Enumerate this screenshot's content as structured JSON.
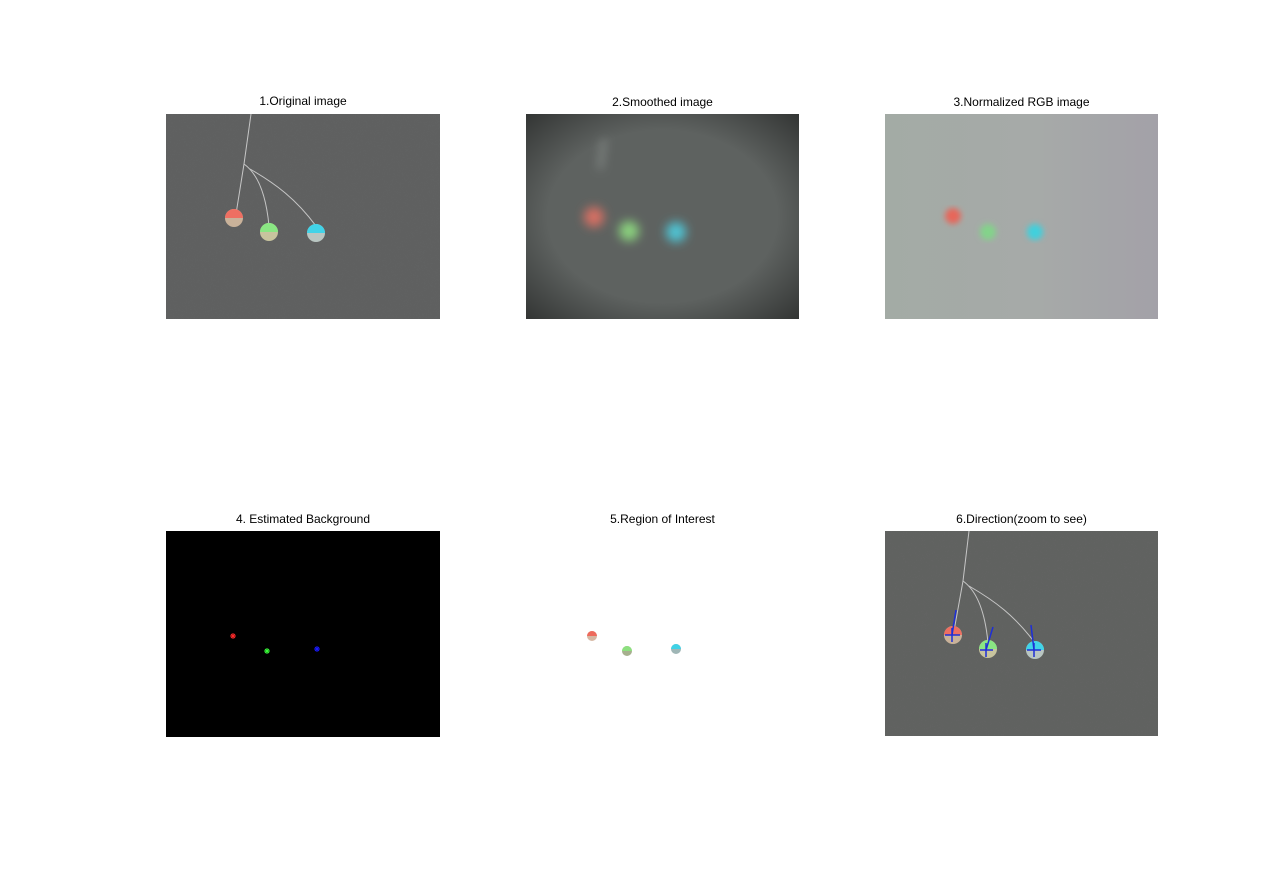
{
  "figure": {
    "panels": [
      {
        "id": "original",
        "title": "1.Original image"
      },
      {
        "id": "smoothed",
        "title": "2.Smoothed image"
      },
      {
        "id": "normalized",
        "title": "3.Normalized RGB image"
      },
      {
        "id": "background",
        "title": "4. Estimated Background"
      },
      {
        "id": "roi",
        "title": "5.Region of Interest"
      },
      {
        "id": "direction",
        "title": "6.Direction(zoom to see)"
      }
    ]
  },
  "colors": {
    "marker_red": "#e11b1b",
    "marker_green": "#4fe04f",
    "marker_cyan": "#38d6e8",
    "direction_line": "#1e2fd6",
    "centroid_red": "#ff2a2a",
    "centroid_green": "#39ff39",
    "centroid_blue": "#0a0aff"
  }
}
